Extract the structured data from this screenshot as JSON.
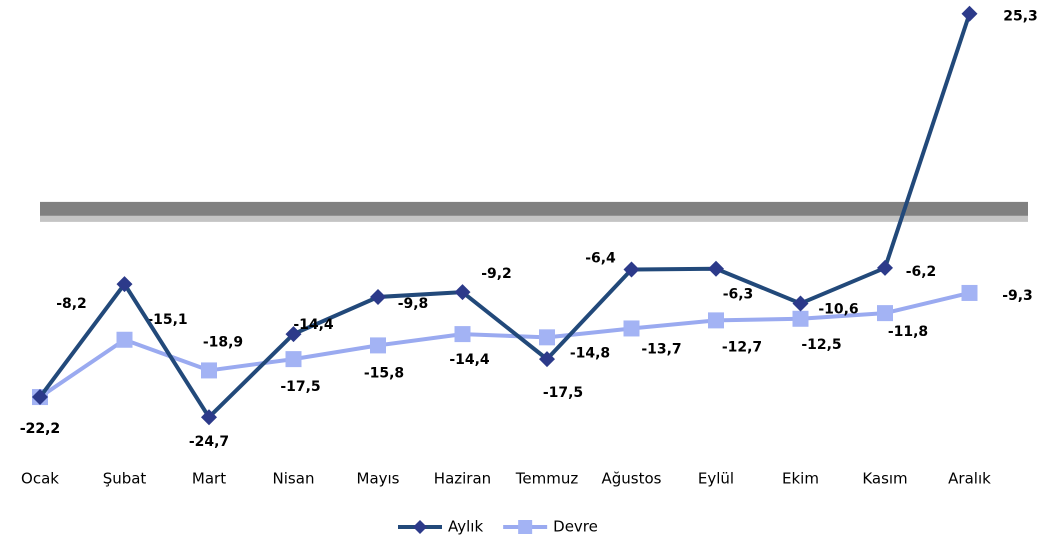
{
  "chart_data": {
    "type": "line",
    "categories": [
      "Ocak",
      "Şubat",
      "Mart",
      "Nisan",
      "Mayıs",
      "Haziran",
      "Temmuz",
      "Ağustos",
      "Eylül",
      "Ekim",
      "Kasım",
      "Aralık"
    ],
    "series": [
      {
        "name": "Aylık",
        "color": "#22497a",
        "marker_color": "#2c3a8a",
        "marker": "diamond",
        "values": [
          -22.2,
          -8.2,
          -24.7,
          -14.4,
          -9.8,
          -9.2,
          -17.5,
          -6.4,
          -6.3,
          -10.6,
          -6.2,
          25.3
        ],
        "value_labels": [
          "-22,2",
          "-8,2",
          "-24,7",
          "-14,4",
          "-9,8",
          "-9,2",
          "-17,5",
          "-6,4",
          "-6,3",
          "-10,6",
          "-6,2",
          "25,3"
        ]
      },
      {
        "name": "Devre",
        "color": "#9aaaf0",
        "marker_color": "#a3b3f4",
        "marker": "square",
        "values": [
          -22.2,
          -15.1,
          -18.9,
          -17.5,
          -15.8,
          -14.4,
          -14.8,
          -13.7,
          -12.7,
          -12.5,
          -11.8,
          -9.3
        ],
        "value_labels": [
          "-22,2",
          "-15,1",
          "-18,9",
          "-17,5",
          "-15,8",
          "-14,4",
          "-14,8",
          "-13,7",
          "-12,7",
          "-12,5",
          "-11,8",
          "-9,3"
        ]
      }
    ],
    "ylim": [
      -30,
      27
    ],
    "legend": "bottom"
  }
}
